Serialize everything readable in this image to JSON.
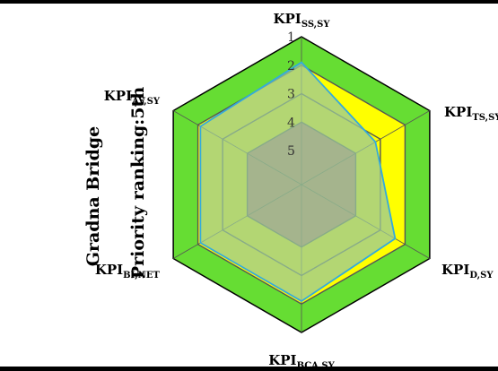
{
  "header": {
    "bridge_name": "Gradna Bridge",
    "priority_ranking": "Priority ranking:5th"
  },
  "chart_data": {
    "type": "radar",
    "axes": [
      {
        "main": "KPI",
        "sub": "SS,SY"
      },
      {
        "main": "KPI",
        "sub": "TS,SY"
      },
      {
        "main": "KPI",
        "sub": "D,SY"
      },
      {
        "main": "KPI",
        "sub": "BCA,SY"
      },
      {
        "main": "KPI",
        "sub": "BI,NET"
      },
      {
        "main": "KPI",
        "sub": "AV,SY"
      }
    ],
    "scale": {
      "ticks": [
        "1",
        "2",
        "3",
        "4",
        "5"
      ],
      "reversed": true
    },
    "bands": [
      {
        "from": 1,
        "to": 2,
        "color": "#66dd33"
      },
      {
        "from": 2,
        "to": 3,
        "color": "#ffff00"
      },
      {
        "from": 3,
        "to": 4,
        "color": "#ffff00"
      },
      {
        "from": 4,
        "to": 5,
        "color": "#c87868"
      }
    ],
    "series": [
      {
        "values": [
          1.9,
          3.2,
          2.4,
          2.1,
          2.1,
          2.1
        ],
        "line_color": "#33aadd",
        "fill_color": "#9ac89a"
      }
    ],
    "grid_color": "#555555"
  }
}
